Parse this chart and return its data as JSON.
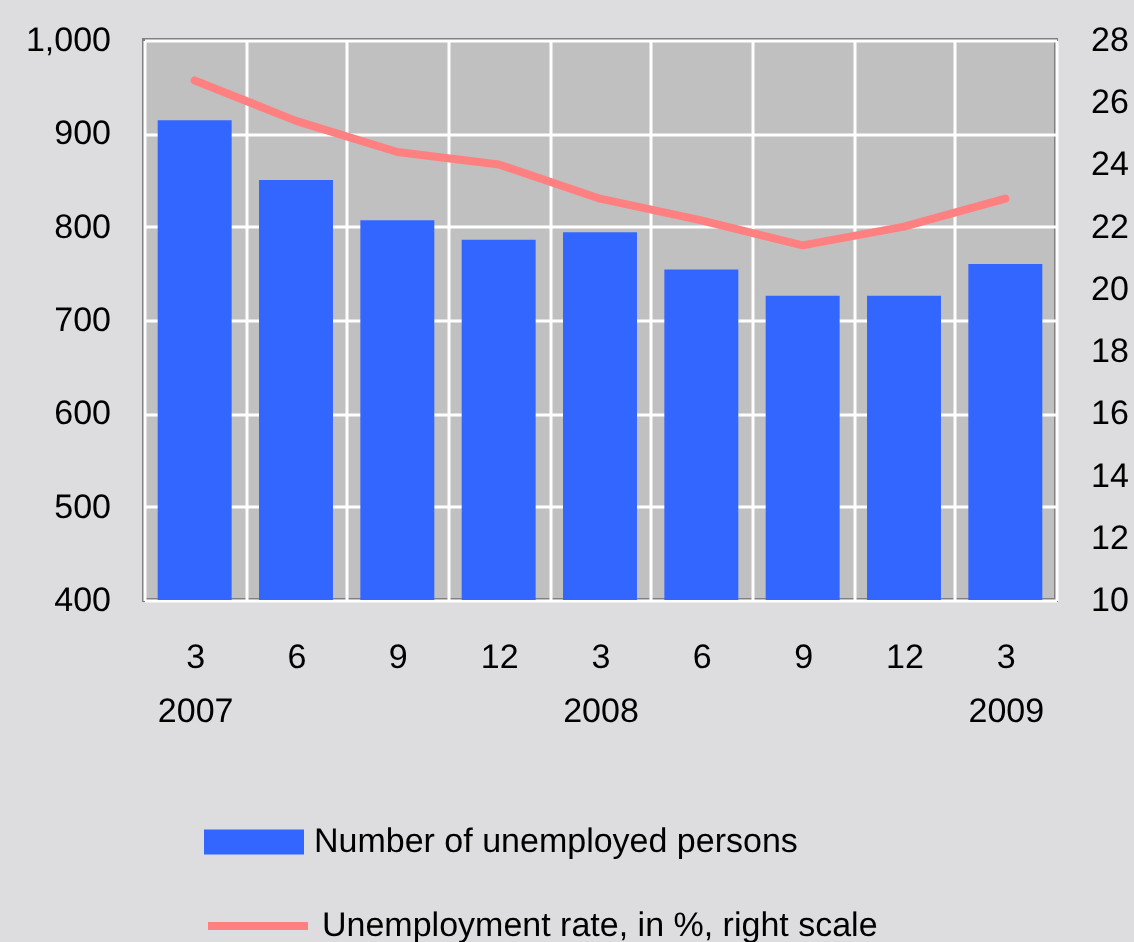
{
  "chart_data": {
    "type": "bar",
    "categories": [
      "3\n2007",
      "6",
      "9",
      "12",
      "3\n2008",
      "6",
      "9",
      "12",
      "3\n2009"
    ],
    "series": [
      {
        "name": "Number of unemployed persons",
        "color": "#3366ff",
        "values": [
          914,
          850,
          807,
          786,
          794,
          754,
          726,
          726,
          760
        ]
      },
      {
        "name": "Unemployment rate, in %, right scale",
        "type": "line",
        "axis": "y2",
        "color": "#ff8080",
        "values": [
          26.7,
          25.4,
          24.4,
          24.0,
          22.9,
          22.2,
          21.4,
          22.0,
          22.9
        ]
      }
    ],
    "ylim": [
      400,
      1000
    ],
    "yticks": [
      400,
      500,
      600,
      700,
      800,
      900,
      {
        "value": 1000,
        "label": "1,000"
      }
    ],
    "y2lim": [
      10,
      28
    ],
    "y2ticks": [
      10,
      12,
      14,
      16,
      18,
      20,
      22,
      24,
      26,
      28
    ],
    "grid": true,
    "legend": "bottom",
    "marker": "none",
    "line_style": "solid"
  }
}
